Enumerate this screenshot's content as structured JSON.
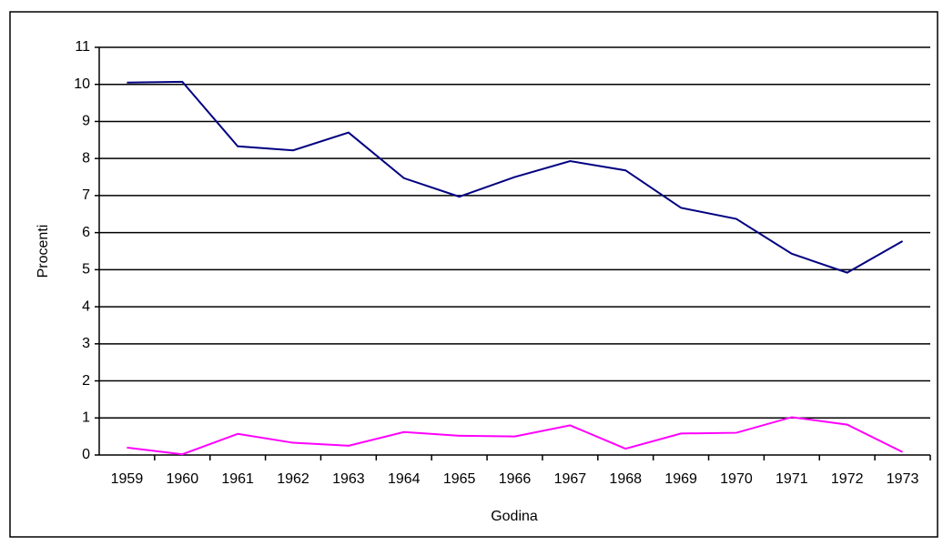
{
  "chart_data": {
    "type": "line",
    "x_label": "Godina",
    "y_label": "Procenti",
    "categories": [
      "1959",
      "1960",
      "1961",
      "1962",
      "1963",
      "1964",
      "1965",
      "1966",
      "1967",
      "1968",
      "1969",
      "1970",
      "1971",
      "1972",
      "1973"
    ],
    "series": [
      {
        "color": "#000080",
        "values": [
          10.05,
          10.07,
          8.33,
          8.22,
          8.7,
          7.47,
          6.97,
          7.5,
          7.93,
          7.68,
          6.67,
          6.37,
          5.43,
          4.92,
          5.77
        ]
      },
      {
        "color": "#ff00ff",
        "values": [
          0.2,
          0.02,
          0.57,
          0.33,
          0.25,
          0.62,
          0.52,
          0.5,
          0.8,
          0.17,
          0.58,
          0.6,
          1.02,
          0.82,
          0.08
        ]
      }
    ],
    "ylim": [
      0,
      11
    ],
    "yticks": [
      0,
      1,
      2,
      3,
      4,
      5,
      6,
      7,
      8,
      9,
      10,
      11
    ],
    "grid": true
  }
}
